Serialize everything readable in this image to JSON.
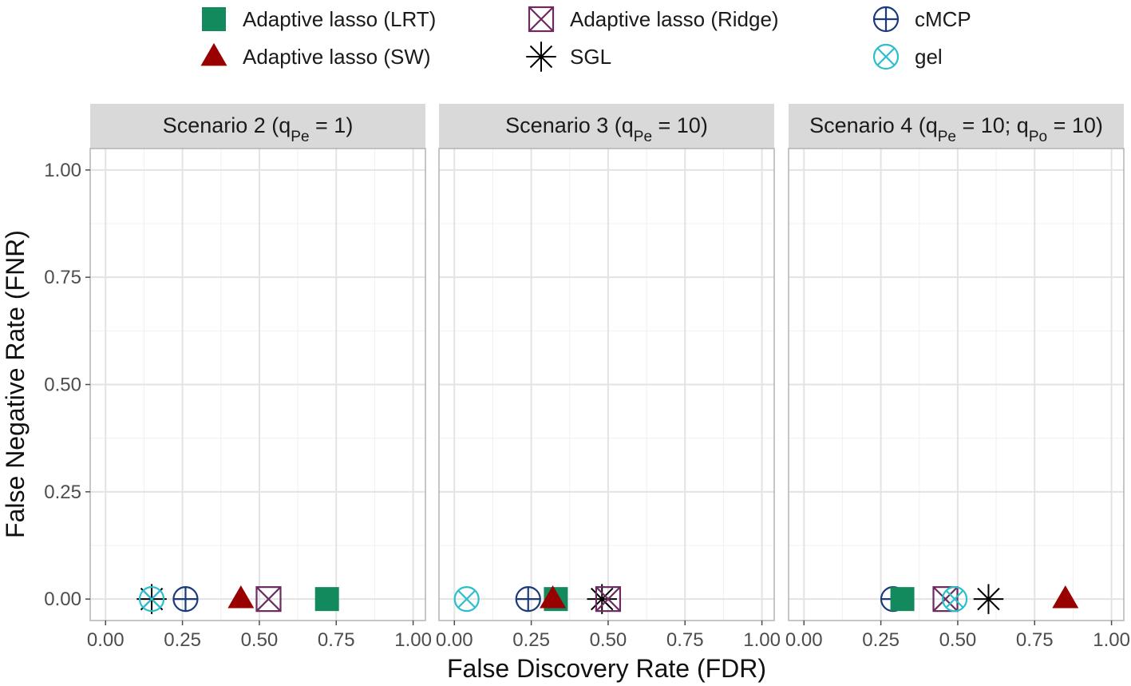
{
  "chart_data": {
    "type": "scatter",
    "xlabel": "False Discovery Rate (FDR)",
    "ylabel": "False Negative Rate (FNR)",
    "xlim": [
      -0.05,
      1.04
    ],
    "ylim": [
      -0.05,
      1.05
    ],
    "x_ticks": [
      "0.00",
      "0.25",
      "0.50",
      "0.75",
      "1.00"
    ],
    "y_ticks": [
      "0.00",
      "0.25",
      "0.50",
      "0.75",
      "1.00"
    ],
    "grid": true,
    "legend_position": "top",
    "series": [
      {
        "name": "Adaptive lasso (LRT)",
        "shape": "filled-square",
        "color": "#138A5E"
      },
      {
        "name": "Adaptive lasso (SW)",
        "shape": "filled-triangle",
        "color": "#990000"
      },
      {
        "name": "Adaptive lasso (Ridge)",
        "shape": "square-cross",
        "color": "#6A2C5F"
      },
      {
        "name": "SGL",
        "shape": "asterisk",
        "color": "#000000"
      },
      {
        "name": "cMCP",
        "shape": "circle-plus",
        "color": "#1A3A7A"
      },
      {
        "name": "gel",
        "shape": "circle-cross",
        "color": "#2BBFCB"
      }
    ],
    "panels": [
      {
        "title_pre": "Scenario 2 (q",
        "title_sub": "Pe",
        "title_post": " = 1)",
        "points": [
          {
            "series": "SGL",
            "x": 0.15,
            "y": 0
          },
          {
            "series": "gel",
            "x": 0.15,
            "y": 0
          },
          {
            "series": "cMCP",
            "x": 0.26,
            "y": 0
          },
          {
            "series": "Adaptive lasso (SW)",
            "x": 0.44,
            "y": 0
          },
          {
            "series": "Adaptive lasso (Ridge)",
            "x": 0.53,
            "y": 0
          },
          {
            "series": "Adaptive lasso (LRT)",
            "x": 0.72,
            "y": 0
          }
        ]
      },
      {
        "title_pre": "Scenario 3 (q",
        "title_sub": "Pe",
        "title_post": " = 10)",
        "points": [
          {
            "series": "gel",
            "x": 0.04,
            "y": 0
          },
          {
            "series": "cMCP",
            "x": 0.24,
            "y": 0
          },
          {
            "series": "Adaptive lasso (LRT)",
            "x": 0.33,
            "y": 0
          },
          {
            "series": "Adaptive lasso (SW)",
            "x": 0.32,
            "y": 0
          },
          {
            "series": "SGL",
            "x": 0.48,
            "y": 0
          },
          {
            "series": "Adaptive lasso (Ridge)",
            "x": 0.5,
            "y": 0
          }
        ]
      },
      {
        "title_pre": "Scenario 4 (q",
        "title_sub": "Pe",
        "title_mid": " = 10; q",
        "title_sub2": "Po",
        "title_post": " = 10)",
        "points": [
          {
            "series": "cMCP",
            "x": 0.29,
            "y": 0
          },
          {
            "series": "Adaptive lasso (LRT)",
            "x": 0.32,
            "y": 0
          },
          {
            "series": "Adaptive lasso (Ridge)",
            "x": 0.46,
            "y": 0
          },
          {
            "series": "gel",
            "x": 0.49,
            "y": 0
          },
          {
            "series": "SGL",
            "x": 0.6,
            "y": 0
          },
          {
            "series": "Adaptive lasso (SW)",
            "x": 0.85,
            "y": 0
          }
        ]
      }
    ]
  }
}
